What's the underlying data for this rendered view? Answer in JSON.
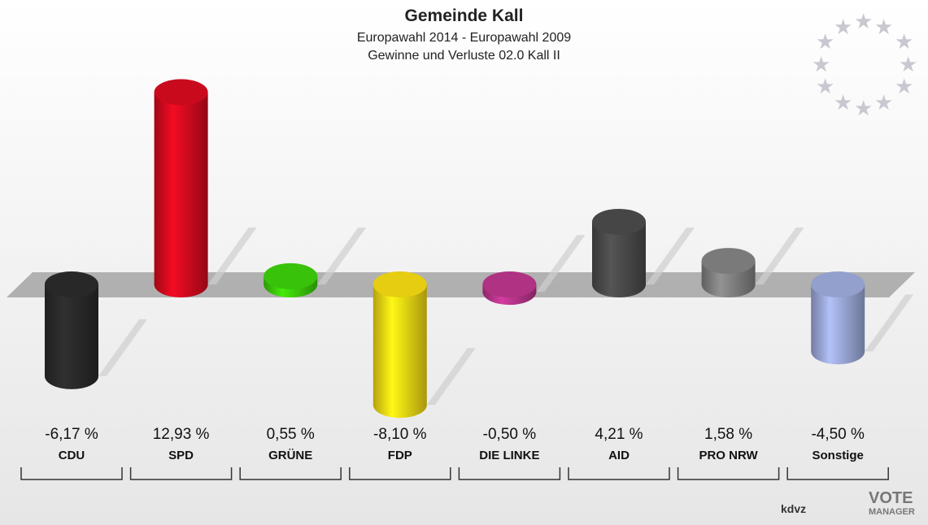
{
  "chart_data": {
    "type": "bar",
    "title": "Gemeinde Kall",
    "subtitle": "Europawahl 2014 - Europawahl 2009",
    "subtitle2": "Gewinne und Verluste 02.0 Kall II",
    "categories": [
      "CDU",
      "SPD",
      "GRÜNE",
      "FDP",
      "DIE LINKE",
      "AID",
      "PRO NRW",
      "Sonstige"
    ],
    "values": [
      -6.17,
      12.93,
      0.55,
      -8.1,
      -0.5,
      4.21,
      1.58,
      -4.5
    ],
    "value_labels": [
      "-6,17 %",
      "12,93 %",
      "0,55 %",
      "-8,10 %",
      "-0,50 %",
      "4,21 %",
      "1,58 %",
      "-4,50 %"
    ],
    "colors": [
      "#2a2a2a",
      "#d40a1e",
      "#3ccc0a",
      "#f2d812",
      "#b8358a",
      "#4a4a4a",
      "#808080",
      "#9ba8d8"
    ],
    "logo": {
      "brand": "kdvz",
      "vote": "VOTE",
      "manager": "MANAGER"
    }
  }
}
